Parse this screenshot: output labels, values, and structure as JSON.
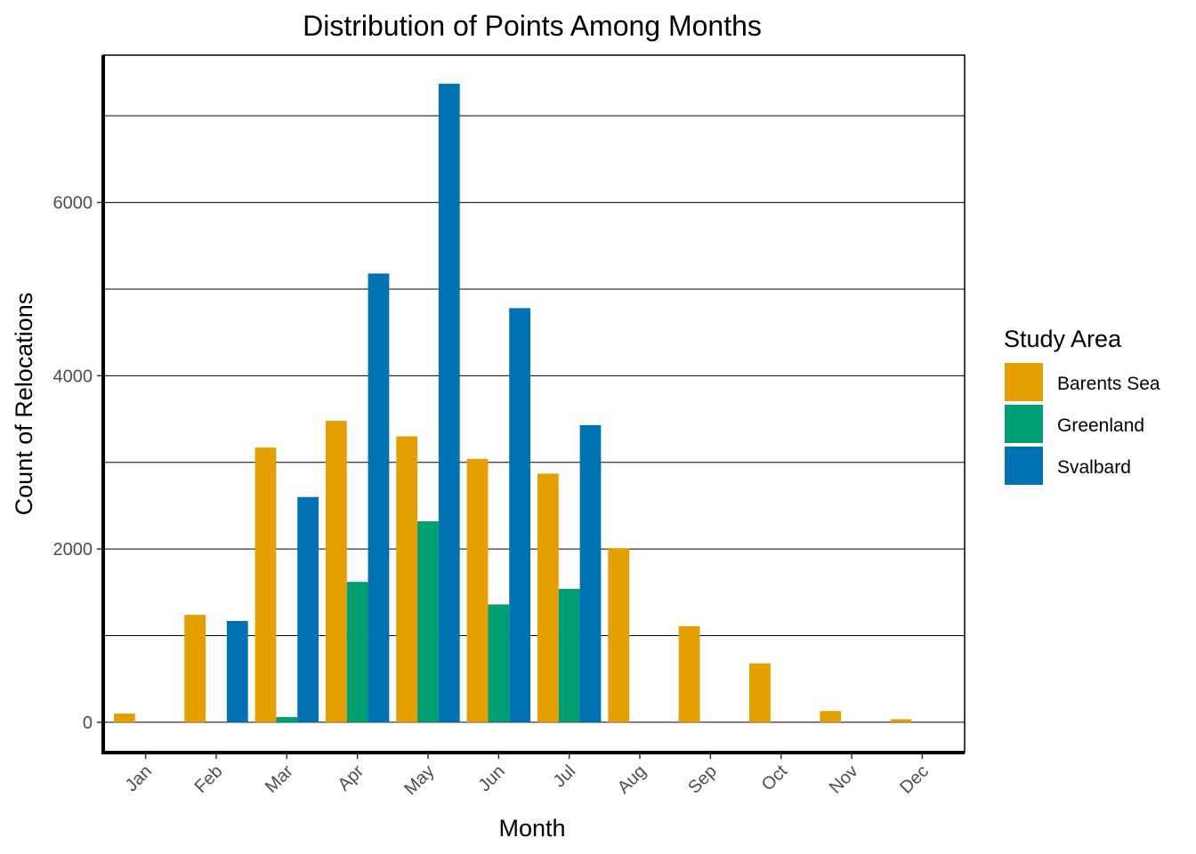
{
  "chart_data": {
    "type": "bar",
    "title": "Distribution of Points Among Months",
    "xlabel": "Month",
    "ylabel": "Count of Relocations",
    "categories": [
      "Jan",
      "Feb",
      "Mar",
      "Apr",
      "May",
      "Jun",
      "Jul",
      "Aug",
      "Sep",
      "Oct",
      "Nov",
      "Dec"
    ],
    "series": [
      {
        "name": "Barents Sea",
        "color": "#E69F00",
        "values": [
          100,
          1240,
          3170,
          3480,
          3300,
          3040,
          2870,
          2010,
          1110,
          680,
          130,
          35
        ]
      },
      {
        "name": "Greenland",
        "color": "#009E73",
        "values": [
          0,
          0,
          60,
          1620,
          2320,
          1360,
          1540,
          0,
          0,
          0,
          0,
          0
        ]
      },
      {
        "name": "Svalbard",
        "color": "#0072B2",
        "values": [
          0,
          1170,
          2600,
          5180,
          7370,
          4780,
          3430,
          0,
          0,
          0,
          0,
          0
        ]
      }
    ],
    "ylim": [
      -350,
      7700
    ],
    "yticks": [
      0,
      2000,
      4000,
      6000
    ],
    "ytick_labels": [
      "0",
      "2000",
      "4000",
      "6000"
    ],
    "gridlines_y": [
      0,
      1000,
      2000,
      3000,
      4000,
      5000,
      6000,
      7000
    ],
    "grid": "horizontal major and minor",
    "legend": {
      "title": "Study Area",
      "position": "right"
    }
  }
}
